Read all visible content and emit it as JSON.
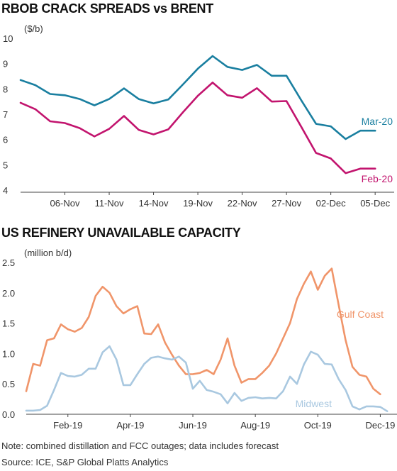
{
  "chart_data": [
    {
      "type": "line",
      "title": "RBOB CRACK SPREADS vs BRENT",
      "ylabel": "($/b)",
      "ylim": [
        4,
        10
      ],
      "yticks": [
        4,
        5,
        6,
        7,
        8,
        9,
        10
      ],
      "xtick_labels": [
        "06-Nov",
        "11-Nov",
        "14-Nov",
        "19-Nov",
        "22-Nov",
        "27-Nov",
        "02-Dec",
        "05-Dec"
      ],
      "x_index_range": [
        0,
        25
      ],
      "xtick_index": [
        3,
        6,
        9,
        12,
        15,
        18,
        21,
        24
      ],
      "grid": false,
      "colors": {
        "Mar-20": "#1a7fa0",
        "Feb-20": "#c2146e"
      },
      "series": [
        {
          "name": "Mar-20",
          "x": [
            0,
            1,
            2,
            3,
            4,
            5,
            6,
            7,
            8,
            9,
            10,
            11,
            12,
            13,
            14,
            15,
            16,
            17,
            18,
            19,
            20,
            21,
            22,
            23,
            24
          ],
          "values": [
            8.35,
            8.15,
            7.8,
            7.75,
            7.6,
            7.35,
            7.6,
            8.02,
            7.6,
            7.43,
            7.58,
            8.18,
            8.8,
            9.3,
            8.87,
            8.75,
            8.95,
            8.52,
            8.52,
            7.55,
            6.62,
            6.52,
            6.02,
            6.35,
            6.35
          ]
        },
        {
          "name": "Feb-20",
          "x": [
            0,
            1,
            2,
            3,
            4,
            5,
            6,
            7,
            8,
            9,
            10,
            11,
            12,
            13,
            14,
            15,
            16,
            17,
            18,
            19,
            20,
            21,
            22,
            23,
            24
          ],
          "values": [
            7.45,
            7.2,
            6.72,
            6.65,
            6.45,
            6.12,
            6.42,
            6.93,
            6.38,
            6.2,
            6.4,
            7.08,
            7.73,
            8.25,
            7.75,
            7.65,
            8.03,
            7.5,
            7.52,
            6.5,
            5.47,
            5.25,
            4.67,
            4.85,
            4.85
          ]
        }
      ]
    },
    {
      "type": "line",
      "title": "US REFINERY UNAVAILABLE CAPACITY",
      "ylabel": "(million b/d)",
      "ylim": [
        0,
        2.5
      ],
      "yticks": [
        0.0,
        0.5,
        1.0,
        1.5,
        2.0,
        2.5
      ],
      "ytick_labels": [
        "0.0",
        "0.5",
        "1.0",
        "1.5",
        "2.0",
        "2.5"
      ],
      "xtick_labels": [
        "Feb-19",
        "Apr-19",
        "Jun-19",
        "Aug-19",
        "Oct-19",
        "Dec-19"
      ],
      "x_index_range": [
        0,
        53
      ],
      "xtick_index": [
        6,
        15,
        24,
        33,
        42,
        51
      ],
      "grid": false,
      "colors": {
        "Gulf Coast": "#f0956a",
        "Midwest": "#a9c8e0"
      },
      "series": [
        {
          "name": "Gulf Coast",
          "values": [
            0.38,
            0.83,
            0.8,
            1.22,
            1.25,
            1.48,
            1.4,
            1.36,
            1.42,
            1.6,
            1.95,
            2.1,
            2.0,
            1.78,
            1.66,
            1.73,
            1.78,
            1.33,
            1.32,
            1.48,
            1.18,
            0.98,
            0.8,
            0.66,
            0.66,
            0.68,
            0.73,
            0.66,
            0.9,
            1.25,
            0.8,
            0.52,
            0.58,
            0.58,
            0.68,
            0.8,
            1.0,
            1.25,
            1.5,
            1.9,
            2.15,
            2.35,
            2.05,
            2.28,
            2.4,
            1.8,
            1.22,
            0.78,
            0.65,
            0.62,
            0.42,
            0.33
          ]
        },
        {
          "name": "Midwest",
          "values": [
            0.06,
            0.06,
            0.07,
            0.14,
            0.4,
            0.68,
            0.63,
            0.62,
            0.65,
            0.75,
            0.75,
            1.02,
            1.12,
            0.9,
            0.48,
            0.48,
            0.66,
            0.83,
            0.93,
            0.95,
            0.92,
            0.9,
            0.95,
            0.85,
            0.42,
            0.55,
            0.4,
            0.37,
            0.33,
            0.18,
            0.35,
            0.22,
            0.27,
            0.28,
            0.26,
            0.27,
            0.26,
            0.38,
            0.62,
            0.5,
            0.82,
            1.03,
            0.98,
            0.83,
            0.82,
            0.58,
            0.4,
            0.13,
            0.08,
            0.13,
            0.13,
            0.12,
            0.05
          ]
        }
      ]
    }
  ],
  "labels": {
    "chart1_title": "RBOB CRACK SPREADS vs BRENT",
    "chart1_unit": "($/b)",
    "chart1_series": [
      "Mar-20",
      "Feb-20"
    ],
    "chart2_title": "US REFINERY UNAVAILABLE CAPACITY",
    "chart2_unit": "(million b/d)",
    "chart2_series": [
      "Gulf Coast",
      "Midwest"
    ]
  },
  "footer": {
    "note": "Note: combined distillation and FCC outages; data includes forecast",
    "source": "Source: ICE, S&P Global Platts Analytics"
  }
}
